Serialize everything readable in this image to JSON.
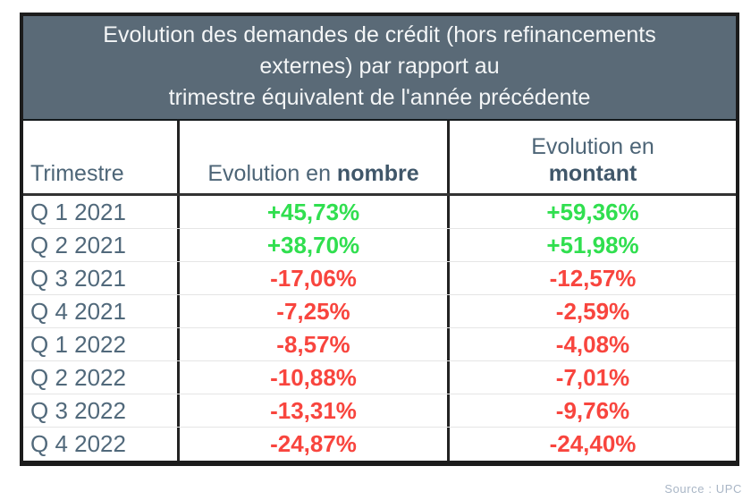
{
  "title": {
    "line1": "Evolution des demandes de crédit (hors refinancements",
    "line2": "externes) par rapport au",
    "line3": "trimestre équivalent de l'année précédente"
  },
  "table": {
    "headers": {
      "trimestre": "Trimestre",
      "nombre_prefix": "Evolution en ",
      "nombre_bold": "nombre",
      "montant_line1": "Evolution en",
      "montant_bold": "montant"
    },
    "rows": [
      {
        "trimestre": "Q 1 2021",
        "nombre": "+45,73%",
        "montant": "+59,36%"
      },
      {
        "trimestre": "Q 2 2021",
        "nombre": "+38,70%",
        "montant": "+51,98%"
      },
      {
        "trimestre": "Q 3 2021",
        "nombre": "-17,06%",
        "montant": "-12,57%"
      },
      {
        "trimestre": "Q 4 2021",
        "nombre": "-7,25%",
        "montant": "-2,59%"
      },
      {
        "trimestre": "Q 1 2022",
        "nombre": "-8,57%",
        "montant": "-4,08%"
      },
      {
        "trimestre": "Q 2 2022",
        "nombre": "-10,88%",
        "montant": "-7,01%"
      },
      {
        "trimestre": "Q 3 2022",
        "nombre": "-13,31%",
        "montant": "-9,76%"
      },
      {
        "trimestre": "Q 4 2022",
        "nombre": "-24,87%",
        "montant": "-24,40%"
      }
    ]
  },
  "source": "Source : UPC",
  "colors": {
    "positive": "#30df4f",
    "negative": "#f8453e",
    "header_bg": "#5a6a77",
    "label_text": "#51697b",
    "source_text": "#a9b6c6"
  },
  "chart_data": {
    "type": "table",
    "title": "Evolution des demandes de crédit (hors refinancements externes) par rapport au trimestre équivalent de l'année précédente",
    "columns": [
      "Trimestre",
      "Evolution en nombre",
      "Evolution en montant"
    ],
    "categories": [
      "Q 1 2021",
      "Q 2 2021",
      "Q 3 2021",
      "Q 4 2021",
      "Q 1 2022",
      "Q 2 2022",
      "Q 3 2022",
      "Q 4 2022"
    ],
    "series": [
      {
        "name": "Evolution en nombre (%)",
        "values": [
          45.73,
          38.7,
          -17.06,
          -7.25,
          -8.57,
          -10.88,
          -13.31,
          -24.87
        ]
      },
      {
        "name": "Evolution en montant (%)",
        "values": [
          59.36,
          51.98,
          -12.57,
          -2.59,
          -4.08,
          -7.01,
          -9.76,
          -24.4
        ]
      }
    ],
    "annotations": [
      "Source : UPC"
    ],
    "value_format": "signed percent, comma decimal separator",
    "color_coding": "positive values green, negative values red"
  }
}
